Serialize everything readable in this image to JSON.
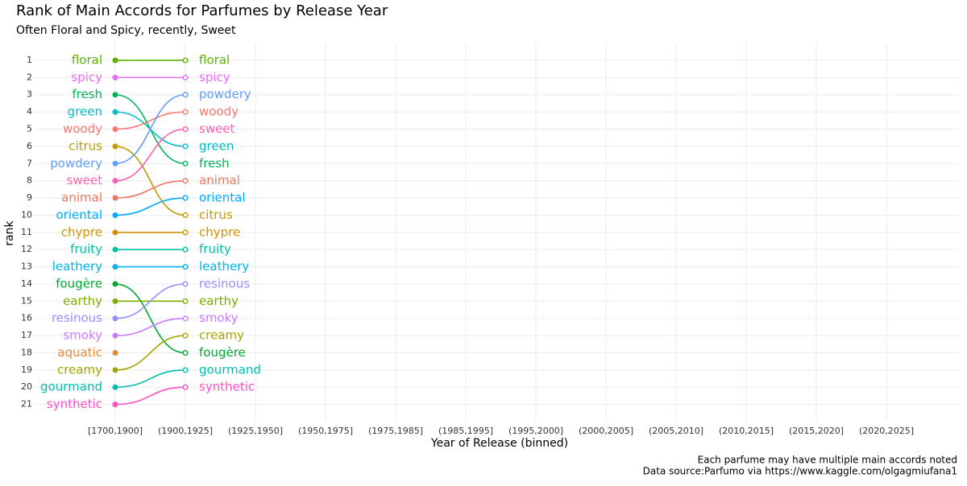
{
  "chart_data": {
    "type": "bump",
    "title": "Rank of Main Accords for Parfumes by Release Year",
    "subtitle": "Often Floral and Spicy, recently, Sweet",
    "xlabel": "Year of Release (binned)",
    "ylabel": "rank",
    "caption": [
      "Each parfume may have multiple main accords noted",
      "Data source:Parfumo via https://www.kaggle.com/olgagmiufana1"
    ],
    "categories": [
      "[1700,1900]",
      "(1900,1925]",
      "(1925,1950]",
      "(1950,1975]",
      "(1975,1985]",
      "(1985,1995]",
      "(1995,2000]",
      "(2000,2005]",
      "(2005,2010]",
      "(2010,2015]",
      "(2015,2020]",
      "(2020,2025]"
    ],
    "ylim": [
      22,
      0
    ],
    "yticks": [
      1,
      2,
      3,
      4,
      5,
      6,
      7,
      8,
      9,
      10,
      11,
      12,
      13,
      14,
      15,
      16,
      17,
      18,
      19,
      20,
      21
    ],
    "grid": true,
    "series": [
      {
        "name": "floral",
        "color": "#5BB300",
        "values": [
          1,
          1,
          null,
          null,
          null,
          null,
          null,
          null,
          null,
          null,
          null,
          null
        ]
      },
      {
        "name": "spicy",
        "color": "#E76BF3",
        "values": [
          2,
          2,
          null,
          null,
          null,
          null,
          null,
          null,
          null,
          null,
          null,
          null
        ]
      },
      {
        "name": "fresh",
        "color": "#00B75A",
        "values": [
          3,
          7,
          null,
          null,
          null,
          null,
          null,
          null,
          null,
          null,
          null,
          null
        ]
      },
      {
        "name": "green",
        "color": "#00BCC8",
        "values": [
          4,
          6,
          null,
          null,
          null,
          null,
          null,
          null,
          null,
          null,
          null,
          null
        ]
      },
      {
        "name": "woody",
        "color": "#F8766D",
        "values": [
          5,
          4,
          null,
          null,
          null,
          null,
          null,
          null,
          null,
          null,
          null,
          null
        ]
      },
      {
        "name": "citrus",
        "color": "#C49A00",
        "values": [
          6,
          10,
          null,
          null,
          null,
          null,
          null,
          null,
          null,
          null,
          null,
          null
        ]
      },
      {
        "name": "powdery",
        "color": "#619CFF",
        "values": [
          7,
          3,
          null,
          null,
          null,
          null,
          null,
          null,
          null,
          null,
          null,
          null
        ]
      },
      {
        "name": "sweet",
        "color": "#FF5FAE",
        "values": [
          8,
          5,
          null,
          null,
          null,
          null,
          null,
          null,
          null,
          null,
          null,
          null
        ]
      },
      {
        "name": "animal",
        "color": "#EE7560",
        "values": [
          9,
          8,
          null,
          null,
          null,
          null,
          null,
          null,
          null,
          null,
          null,
          null
        ]
      },
      {
        "name": "oriental",
        "color": "#00A9FF",
        "values": [
          10,
          9,
          null,
          null,
          null,
          null,
          null,
          null,
          null,
          null,
          null,
          null
        ]
      },
      {
        "name": "chypre",
        "color": "#D39200",
        "values": [
          11,
          11,
          null,
          null,
          null,
          null,
          null,
          null,
          null,
          null,
          null,
          null
        ]
      },
      {
        "name": "fruity",
        "color": "#00C19F",
        "values": [
          12,
          12,
          null,
          null,
          null,
          null,
          null,
          null,
          null,
          null,
          null,
          null
        ]
      },
      {
        "name": "leathery",
        "color": "#00B4EF",
        "values": [
          13,
          13,
          null,
          null,
          null,
          null,
          null,
          null,
          null,
          null,
          null,
          null
        ]
      },
      {
        "name": "fougère",
        "color": "#00A832",
        "values": [
          14,
          18,
          null,
          null,
          null,
          null,
          null,
          null,
          null,
          null,
          null,
          null
        ]
      },
      {
        "name": "earthy",
        "color": "#7CAE00",
        "values": [
          15,
          15,
          null,
          null,
          null,
          null,
          null,
          null,
          null,
          null,
          null,
          null
        ]
      },
      {
        "name": "resinous",
        "color": "#9590FF",
        "values": [
          16,
          14,
          null,
          null,
          null,
          null,
          null,
          null,
          null,
          null,
          null,
          null
        ]
      },
      {
        "name": "smoky",
        "color": "#C77CFF",
        "values": [
          17,
          16,
          null,
          null,
          null,
          null,
          null,
          null,
          null,
          null,
          null,
          null
        ]
      },
      {
        "name": "aquatic",
        "color": "#E08B3A",
        "values": [
          18,
          null,
          null,
          null,
          null,
          null,
          null,
          null,
          null,
          null,
          null,
          null
        ]
      },
      {
        "name": "creamy",
        "color": "#A3A500",
        "values": [
          19,
          17,
          null,
          null,
          null,
          null,
          null,
          null,
          null,
          null,
          null,
          null
        ]
      },
      {
        "name": "gourmand",
        "color": "#00BFB0",
        "values": [
          20,
          19,
          null,
          null,
          null,
          null,
          null,
          null,
          null,
          null,
          null,
          null
        ]
      },
      {
        "name": "synthetic",
        "color": "#FF4FC8",
        "values": [
          21,
          20,
          null,
          null,
          null,
          null,
          null,
          null,
          null,
          null,
          null,
          null
        ]
      }
    ]
  }
}
